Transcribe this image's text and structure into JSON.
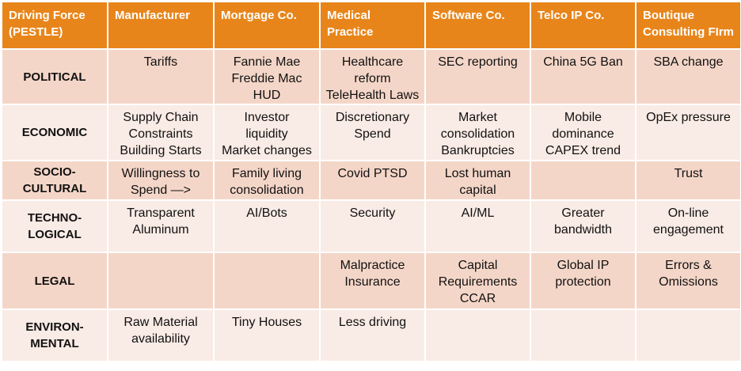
{
  "header": {
    "first": "Driving Force\n(PESTLE)",
    "columns": [
      "Manufacturer",
      "Mortgage Co.",
      "Medical\nPractice",
      "Software Co.",
      "Telco IP Co.",
      "Boutique\nConsulting FIrm"
    ]
  },
  "rows": [
    {
      "label": "POLITICAL",
      "cells": [
        "Tariffs",
        "Fannie Mae\nFreddie Mac\nHUD",
        "Healthcare\nreform\nTeleHealth Laws",
        "SEC reporting",
        "China 5G Ban",
        "SBA change"
      ]
    },
    {
      "label": "ECONOMIC",
      "cells": [
        "Supply Chain\nConstraints\nBuilding Starts",
        "Investor\nliquidity\nMarket changes",
        "Discretionary\nSpend",
        "Market\nconsolidation\nBankruptcies",
        "Mobile\ndominance\nCAPEX trend",
        "OpEx pressure"
      ]
    },
    {
      "label": "SOCIO-\nCULTURAL",
      "cells": [
        "Willingness to\nSpend —>",
        "Family living\nconsolidation",
        "Covid PTSD",
        "Lost human\ncapital",
        "",
        "Trust"
      ]
    },
    {
      "label": "TECHNO-\nLOGICAL",
      "cells": [
        "Transparent\nAluminum",
        "AI/Bots",
        "Security",
        "AI/ML",
        "Greater\nbandwidth",
        "On-line\nengagement"
      ]
    },
    {
      "label": "LEGAL",
      "cells": [
        "",
        "",
        "Malpractice\nInsurance",
        "Capital\nRequirements\nCCAR",
        "Global IP\nprotection",
        "Errors &\nOmissions"
      ]
    },
    {
      "label": "ENVIRON-\nMENTAL",
      "cells": [
        "Raw Material\navailability",
        "Tiny Houses",
        "Less driving",
        "",
        "",
        ""
      ]
    }
  ],
  "colors": {
    "header": "#e8851a",
    "row_dark": "#f4d6c8",
    "row_light": "#f9ebe5"
  }
}
